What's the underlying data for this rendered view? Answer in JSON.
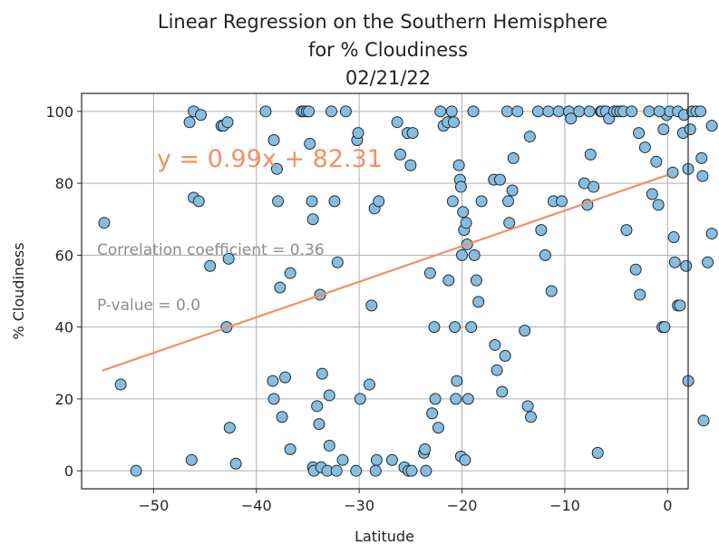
{
  "chart_data": {
    "type": "scatter",
    "title_lines": [
      "Linear Regression on the Southern Hemisphere",
      "for % Cloudiness",
      "02/21/22"
    ],
    "xlabel": "Latitude",
    "ylabel": "% Cloudiness",
    "xlim": [
      -57,
      2
    ],
    "ylim": [
      -5,
      105
    ],
    "xticks": [
      -50,
      -40,
      -30,
      -20,
      -10,
      0
    ],
    "yticks": [
      0,
      20,
      40,
      60,
      80,
      100
    ],
    "grid": true,
    "colors": {
      "point_fill": "#87bde0",
      "point_edge": "#1f2a33",
      "regression": "#f29066",
      "stat_text": "#8c8c8c",
      "axis": "#262626"
    },
    "regression": {
      "equation": "y = 0.99x + 82.31",
      "slope": 0.99,
      "intercept": 82.31,
      "x_range": [
        -55,
        0
      ]
    },
    "annotations": {
      "correlation": "Correlation coefficient = 0.36",
      "pvalue": "P-value = 0.0"
    },
    "points": [
      [
        -54.8,
        69
      ],
      [
        -53.2,
        24
      ],
      [
        -51.7,
        0
      ],
      [
        -46.5,
        97
      ],
      [
        -46.1,
        100
      ],
      [
        -46.1,
        76
      ],
      [
        -45.6,
        75
      ],
      [
        -45.4,
        99
      ],
      [
        -46.3,
        3
      ],
      [
        -44.5,
        57
      ],
      [
        -43.4,
        96
      ],
      [
        -43.2,
        96
      ],
      [
        -42.8,
        97
      ],
      [
        -42.9,
        40
      ],
      [
        -42.7,
        59
      ],
      [
        -42.6,
        12
      ],
      [
        -42.0,
        2
      ],
      [
        -39.1,
        100
      ],
      [
        -38.3,
        92
      ],
      [
        -38.4,
        25
      ],
      [
        -38.3,
        20
      ],
      [
        -38.0,
        84
      ],
      [
        -37.9,
        75
      ],
      [
        -37.7,
        51
      ],
      [
        -37.5,
        15
      ],
      [
        -37.2,
        26
      ],
      [
        -36.7,
        55
      ],
      [
        -36.7,
        6
      ],
      [
        -35.6,
        100
      ],
      [
        -35.4,
        100
      ],
      [
        -35.1,
        100
      ],
      [
        -34.9,
        100
      ],
      [
        -34.8,
        91
      ],
      [
        -34.6,
        75
      ],
      [
        -34.5,
        70
      ],
      [
        -34.5,
        1
      ],
      [
        -34.4,
        0
      ],
      [
        -34.1,
        18
      ],
      [
        -33.9,
        13
      ],
      [
        -33.8,
        49
      ],
      [
        -33.6,
        27
      ],
      [
        -33.7,
        1
      ],
      [
        -33.1,
        0
      ],
      [
        -32.9,
        7
      ],
      [
        -32.7,
        100
      ],
      [
        -32.4,
        75
      ],
      [
        -32.1,
        58
      ],
      [
        -31.6,
        3
      ],
      [
        -31.3,
        100
      ],
      [
        -32.9,
        21
      ],
      [
        -32.2,
        0
      ],
      [
        -30.2,
        92
      ],
      [
        -30.1,
        94
      ],
      [
        -29.9,
        20
      ],
      [
        -30.3,
        0
      ],
      [
        -29.0,
        24
      ],
      [
        -28.8,
        46
      ],
      [
        -28.5,
        73
      ],
      [
        -28.3,
        3
      ],
      [
        -28.1,
        75
      ],
      [
        -28.4,
        0
      ],
      [
        -26.8,
        3
      ],
      [
        -26.3,
        97
      ],
      [
        -26.0,
        88
      ],
      [
        -25.6,
        1
      ],
      [
        -25.3,
        94
      ],
      [
        -25.0,
        85
      ],
      [
        -24.8,
        94
      ],
      [
        -25.2,
        0
      ],
      [
        -24.9,
        0
      ],
      [
        -23.7,
        5
      ],
      [
        -23.6,
        6
      ],
      [
        -23.5,
        0
      ],
      [
        -23.1,
        55
      ],
      [
        -22.9,
        16
      ],
      [
        -22.7,
        40
      ],
      [
        -22.6,
        20
      ],
      [
        -22.3,
        12
      ],
      [
        -22.1,
        100
      ],
      [
        -21.8,
        96
      ],
      [
        -21.4,
        97
      ],
      [
        -21.3,
        53
      ],
      [
        -21.0,
        100
      ],
      [
        -20.9,
        75
      ],
      [
        -20.8,
        97
      ],
      [
        -20.7,
        40
      ],
      [
        -20.6,
        20
      ],
      [
        -20.5,
        25
      ],
      [
        -20.3,
        85
      ],
      [
        -20.2,
        81
      ],
      [
        -20.1,
        79
      ],
      [
        -20.0,
        60
      ],
      [
        -19.9,
        72
      ],
      [
        -19.8,
        67
      ],
      [
        -19.6,
        69
      ],
      [
        -19.5,
        63
      ],
      [
        -19.4,
        20
      ],
      [
        -20.1,
        4
      ],
      [
        -19.7,
        3
      ],
      [
        -19.1,
        40
      ],
      [
        -18.9,
        100
      ],
      [
        -18.8,
        60
      ],
      [
        -18.6,
        53
      ],
      [
        -18.4,
        47
      ],
      [
        -18.1,
        75
      ],
      [
        -16.9,
        81
      ],
      [
        -16.8,
        35
      ],
      [
        -16.6,
        28
      ],
      [
        -16.3,
        81
      ],
      [
        -16.1,
        22
      ],
      [
        -15.8,
        32
      ],
      [
        -15.6,
        100
      ],
      [
        -15.5,
        75
      ],
      [
        -15.4,
        69
      ],
      [
        -15.1,
        78
      ],
      [
        -15.0,
        87
      ],
      [
        -14.6,
        100
      ],
      [
        -13.9,
        39
      ],
      [
        -13.6,
        18
      ],
      [
        -13.4,
        93
      ],
      [
        -13.3,
        15
      ],
      [
        -12.6,
        100
      ],
      [
        -12.3,
        67
      ],
      [
        -11.9,
        60
      ],
      [
        -11.6,
        100
      ],
      [
        -11.3,
        50
      ],
      [
        -11.1,
        75
      ],
      [
        -10.6,
        100
      ],
      [
        -10.3,
        75
      ],
      [
        -9.6,
        100
      ],
      [
        -9.4,
        98
      ],
      [
        -8.6,
        100
      ],
      [
        -8.1,
        80
      ],
      [
        -7.8,
        74
      ],
      [
        -7.6,
        100
      ],
      [
        -7.5,
        88
      ],
      [
        -7.2,
        79
      ],
      [
        -6.8,
        5
      ],
      [
        -6.5,
        100
      ],
      [
        -6.4,
        100
      ],
      [
        -6.0,
        100
      ],
      [
        -5.7,
        98
      ],
      [
        -5.2,
        100
      ],
      [
        -4.9,
        100
      ],
      [
        -4.6,
        100
      ],
      [
        -4.3,
        100
      ],
      [
        -4.0,
        67
      ],
      [
        -3.5,
        100
      ],
      [
        -3.1,
        56
      ],
      [
        -2.8,
        94
      ],
      [
        -2.7,
        49
      ],
      [
        -2.2,
        90
      ],
      [
        -1.8,
        100
      ],
      [
        -1.5,
        77
      ],
      [
        -1.1,
        86
      ],
      [
        -0.9,
        74
      ],
      [
        -0.5,
        40
      ],
      [
        -0.3,
        40
      ],
      [
        -0.1,
        99
      ],
      [
        0.2,
        100
      ],
      [
        0.5,
        83
      ],
      [
        0.6,
        65
      ],
      [
        0.7,
        58
      ],
      [
        1.0,
        46
      ],
      [
        1.2,
        46
      ],
      [
        1.5,
        94
      ],
      [
        -0.8,
        100
      ],
      [
        -0.4,
        95
      ],
      [
        1.0,
        100
      ],
      [
        1.6,
        99
      ],
      [
        1.8,
        57
      ],
      [
        2.0,
        84
      ],
      [
        2.2,
        95
      ],
      [
        2.4,
        100
      ],
      [
        2.8,
        100
      ],
      [
        3.2,
        100
      ],
      [
        3.3,
        87
      ],
      [
        3.4,
        82
      ],
      [
        3.5,
        14
      ],
      [
        3.9,
        58
      ],
      [
        4.3,
        96
      ],
      [
        4.3,
        66
      ],
      [
        2.0,
        25
      ]
    ]
  }
}
